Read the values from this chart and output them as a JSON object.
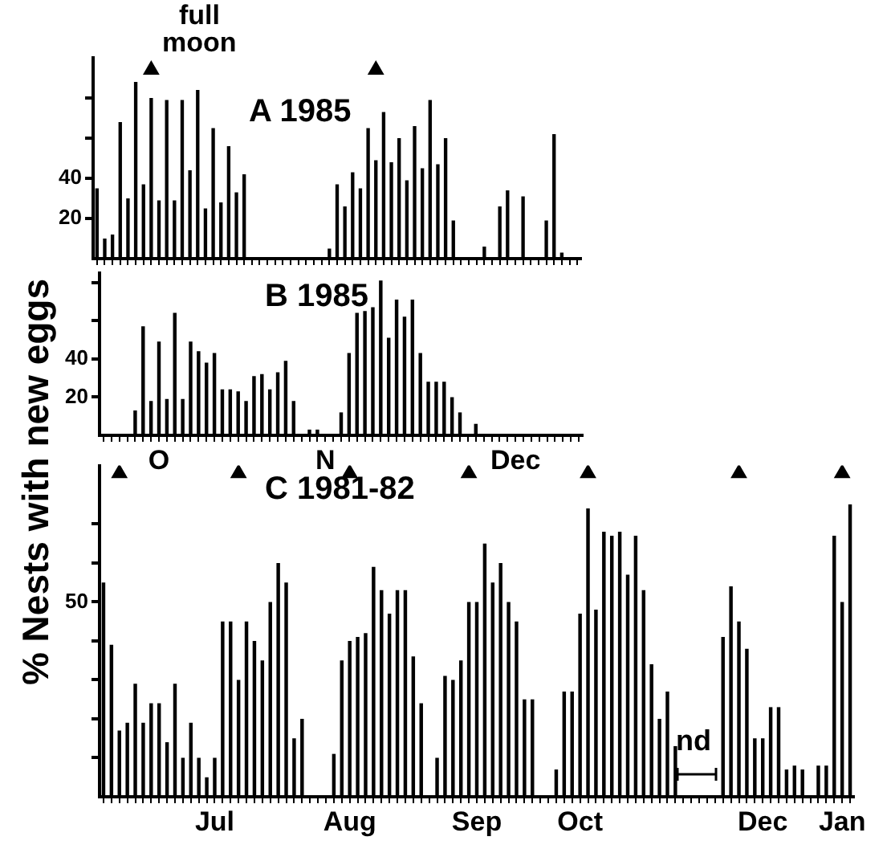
{
  "chart_data": [
    {
      "type": "bar",
      "title": "A 1985",
      "tick_labels": "y",
      "ylim": [
        0,
        100
      ],
      "yticks": [
        20,
        40,
        {
          "value": 60,
          "label": null
        },
        {
          "value": 80,
          "label": null
        }
      ],
      "categories": [
        null,
        null,
        null,
        null,
        null,
        null,
        null,
        null,
        null,
        null,
        null,
        null,
        null,
        null,
        null,
        null,
        null,
        null,
        null,
        null,
        null,
        null,
        null,
        null,
        null,
        null,
        null,
        null,
        null,
        null,
        null,
        null,
        null,
        null,
        null,
        null,
        null,
        null,
        null,
        null,
        null,
        null,
        null,
        null,
        null,
        null,
        null,
        null,
        null,
        null,
        null,
        null,
        null,
        null,
        null,
        null,
        null,
        null,
        null,
        null,
        null,
        null,
        null
      ],
      "series": [
        {
          "color": "#000000",
          "values": [
            35,
            10,
            12,
            68,
            30,
            88,
            37,
            80,
            29,
            79,
            29,
            79,
            44,
            84,
            25,
            65,
            28,
            56,
            33,
            42,
            null,
            null,
            null,
            null,
            null,
            null,
            null,
            null,
            null,
            null,
            5,
            37,
            26,
            43,
            35,
            65,
            49,
            73,
            48,
            60,
            39,
            66,
            45,
            79,
            47,
            60,
            19,
            null,
            null,
            null,
            6,
            null,
            26,
            34,
            null,
            31,
            null,
            null,
            19,
            62,
            3,
            null,
            null
          ]
        },
        {
          "type": "scatter",
          "name": "full moon",
          "color": "#000000",
          "marker": "triangle",
          "values": [
            null,
            null,
            null,
            null,
            null,
            null,
            null,
            94,
            null,
            null,
            null,
            null,
            null,
            null,
            null,
            null,
            null,
            null,
            null,
            null,
            null,
            null,
            null,
            null,
            null,
            null,
            null,
            null,
            null,
            null,
            null,
            null,
            null,
            null,
            null,
            null,
            94,
            null,
            null,
            null,
            null,
            null,
            null,
            null,
            null,
            null,
            null,
            null,
            null,
            null,
            null,
            null,
            null,
            null,
            null,
            null,
            null,
            null,
            null,
            null,
            null,
            null,
            null
          ]
        }
      ]
    },
    {
      "type": "bar",
      "title": "B 1985",
      "ylim": [
        0,
        85
      ],
      "yticks": [
        20,
        40,
        {
          "value": 60,
          "label": null
        },
        {
          "value": 80,
          "label": null
        }
      ],
      "categories": [
        null,
        null,
        null,
        null,
        null,
        null,
        null,
        "O",
        null,
        null,
        null,
        null,
        null,
        null,
        null,
        null,
        null,
        null,
        null,
        null,
        null,
        null,
        null,
        null,
        null,
        null,
        null,
        null,
        "N",
        null,
        null,
        null,
        null,
        null,
        null,
        null,
        null,
        null,
        null,
        null,
        null,
        null,
        null,
        null,
        null,
        null,
        null,
        null,
        null,
        null,
        null,
        null,
        "Dec",
        null,
        null,
        null,
        null,
        null,
        null,
        null,
        null
      ],
      "series": [
        {
          "color": "#000000",
          "values": [
            null,
            null,
            null,
            null,
            13,
            57,
            18,
            49,
            19,
            64,
            19,
            49,
            44,
            38,
            43,
            24,
            24,
            23,
            18,
            31,
            32,
            24,
            33,
            39,
            18,
            null,
            3,
            3,
            null,
            null,
            12,
            43,
            64,
            65,
            67,
            81,
            51,
            71,
            62,
            71,
            43,
            28,
            28,
            28,
            20,
            12,
            null,
            6,
            null,
            null,
            null,
            null,
            null,
            null,
            null,
            null,
            null,
            null,
            null,
            null,
            null
          ]
        }
      ]
    },
    {
      "type": "bar",
      "title": "C 1981-82",
      "ylabel": "% Nests with new eggs",
      "ylim": [
        0,
        85
      ],
      "yticks": [
        {
          "value": 10,
          "label": null
        },
        {
          "value": 20,
          "label": null
        },
        {
          "value": 30,
          "label": null
        },
        {
          "value": 40,
          "label": null
        },
        50,
        {
          "value": 60,
          "label": null
        },
        {
          "value": 70,
          "label": null
        }
      ],
      "annotations": [
        "nd"
      ],
      "categories": [
        null,
        null,
        null,
        null,
        null,
        null,
        null,
        null,
        null,
        null,
        null,
        null,
        null,
        null,
        "Jul",
        null,
        null,
        null,
        null,
        null,
        null,
        null,
        null,
        null,
        null,
        null,
        null,
        null,
        null,
        null,
        null,
        "Aug",
        null,
        null,
        null,
        null,
        null,
        null,
        null,
        null,
        null,
        null,
        null,
        null,
        null,
        null,
        null,
        "Sep",
        null,
        null,
        null,
        null,
        null,
        null,
        null,
        null,
        null,
        null,
        null,
        null,
        "Oct",
        null,
        null,
        null,
        null,
        null,
        null,
        null,
        null,
        null,
        null,
        null,
        null,
        null,
        null,
        null,
        null,
        null,
        null,
        null,
        null,
        null,
        null,
        "Dec",
        null,
        null,
        null,
        null,
        null,
        null,
        null,
        null,
        null,
        "Jan",
        null
      ],
      "series": [
        {
          "color": "#000000",
          "values": [
            55,
            39,
            17,
            19,
            29,
            19,
            24,
            24,
            14,
            29,
            10,
            19,
            10,
            5,
            10,
            45,
            45,
            30,
            45,
            40,
            35,
            50,
            60,
            55,
            15,
            20,
            null,
            null,
            null,
            11,
            35,
            40,
            41,
            42,
            59,
            53,
            47,
            53,
            53,
            36,
            24,
            null,
            10,
            31,
            30,
            35,
            50,
            50,
            65,
            55,
            60,
            50,
            45,
            25,
            25,
            null,
            null,
            7,
            27,
            27,
            47,
            74,
            48,
            68,
            67,
            68,
            57,
            67,
            53,
            34,
            20,
            27,
            13,
            null,
            null,
            null,
            null,
            null,
            41,
            54,
            45,
            38,
            15,
            15,
            23,
            23,
            7,
            8,
            7,
            null,
            8,
            8,
            67,
            50,
            75
          ]
        },
        {
          "type": "scatter",
          "color": "#000000",
          "marker": "triangle",
          "values": [
            null,
            null,
            83,
            null,
            null,
            null,
            null,
            null,
            null,
            null,
            null,
            null,
            null,
            null,
            null,
            null,
            null,
            83,
            null,
            null,
            null,
            null,
            null,
            null,
            null,
            null,
            null,
            null,
            null,
            null,
            null,
            83,
            null,
            null,
            null,
            null,
            null,
            null,
            null,
            null,
            null,
            null,
            null,
            null,
            null,
            null,
            83,
            null,
            null,
            null,
            null,
            null,
            null,
            null,
            null,
            null,
            null,
            null,
            null,
            null,
            null,
            83,
            null,
            null,
            null,
            null,
            null,
            null,
            null,
            null,
            null,
            null,
            null,
            null,
            null,
            null,
            null,
            null,
            null,
            null,
            83,
            null,
            null,
            null,
            null,
            null,
            null,
            null,
            null,
            null,
            null,
            null,
            null,
            83,
            null
          ]
        }
      ]
    }
  ]
}
